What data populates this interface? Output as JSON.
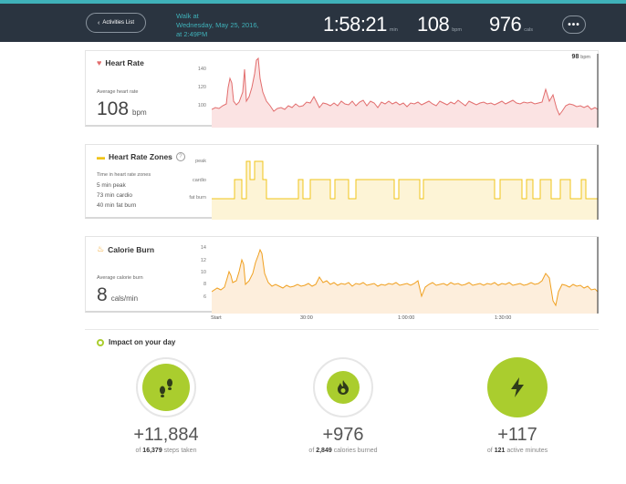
{
  "header": {
    "back_label": "Activities List",
    "walk_line1": "Walk at",
    "walk_line2": "Wednesday, May 25, 2016,",
    "walk_line3": "at 2:49PM",
    "duration": "1:58:21",
    "duration_unit": "min",
    "bpm": "108",
    "bpm_unit": "bpm",
    "cals": "976",
    "cals_unit": "cals",
    "more_label": "•••"
  },
  "heart_rate": {
    "title": "Heart Rate",
    "subtitle": "Average heart rate",
    "value": "108",
    "unit": "bpm",
    "current": "98",
    "current_unit": "bpm",
    "yticks": [
      "140",
      "120",
      "100"
    ],
    "color": "#e26d6d"
  },
  "zones": {
    "title": "Heart Rate Zones",
    "help": "?",
    "subtitle": "Time in heart rate zones",
    "lines": [
      "5 min peak",
      "73 min cardio",
      "40 min fat burn"
    ],
    "ylabels": [
      "peak",
      "cardio",
      "fat burn"
    ],
    "color": "#f0c419"
  },
  "calories": {
    "title": "Calorie Burn",
    "subtitle": "Average calorie burn",
    "value": "8",
    "unit": "cals/min",
    "yticks": [
      "14",
      "12",
      "10",
      "8",
      "6"
    ],
    "color": "#f0a020"
  },
  "xaxis": [
    "Start",
    "30:00",
    "1:00:00",
    "1:30:00"
  ],
  "impact": {
    "title": "Impact on your day",
    "items": [
      {
        "value": "+11,884",
        "of": "of",
        "total": "16,379",
        "label": "steps taken",
        "icon": "footprints-icon"
      },
      {
        "value": "+976",
        "of": "of",
        "total": "2,849",
        "label": "calories burned",
        "icon": "flame-icon"
      },
      {
        "value": "+117",
        "of": "of",
        "total": "121",
        "label": "active minutes",
        "icon": "lightning-icon"
      }
    ],
    "accent": "#aacd2e"
  }
}
